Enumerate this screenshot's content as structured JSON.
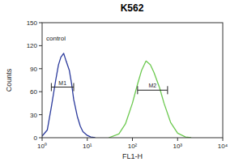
{
  "chart_data": {
    "type": "line",
    "title": "K562",
    "x_label": "FL1-H",
    "y_label": "Counts",
    "log": "x",
    "xlim": [
      1,
      10000
    ],
    "xticks": [
      {
        "value": 1,
        "label": "10⁰"
      },
      {
        "value": 10,
        "label": "10¹"
      },
      {
        "value": 100,
        "label": "10²"
      },
      {
        "value": 1000,
        "label": "10³"
      },
      {
        "value": 10000,
        "label": "10⁴"
      }
    ],
    "ylim": [
      0,
      150
    ],
    "yticks": [
      0,
      30,
      60,
      90,
      120,
      150
    ],
    "series": [
      {
        "name": "control",
        "color": "#2b3a9c",
        "x": [
          1,
          1.3,
          1.6,
          2,
          2.3,
          2.6,
          3,
          3.4,
          4,
          4.5,
          5,
          6,
          7,
          8,
          10,
          12,
          15
        ],
        "values": [
          2,
          10,
          40,
          75,
          95,
          105,
          110,
          100,
          88,
          70,
          50,
          28,
          15,
          8,
          3,
          1,
          0
        ]
      },
      {
        "color": "#6cc94f",
        "x": [
          30,
          50,
          70,
          100,
          130,
          160,
          200,
          250,
          300,
          400,
          500,
          700,
          1000,
          1500,
          2000
        ],
        "values": [
          0,
          5,
          18,
          45,
          70,
          88,
          100,
          95,
          85,
          65,
          45,
          20,
          6,
          1,
          0
        ]
      }
    ],
    "gates": [
      {
        "label": "M1",
        "x": [
          1.6,
          5
        ],
        "y": 66
      },
      {
        "label": "M2",
        "x": [
          130,
          600
        ],
        "y": 62
      }
    ]
  }
}
